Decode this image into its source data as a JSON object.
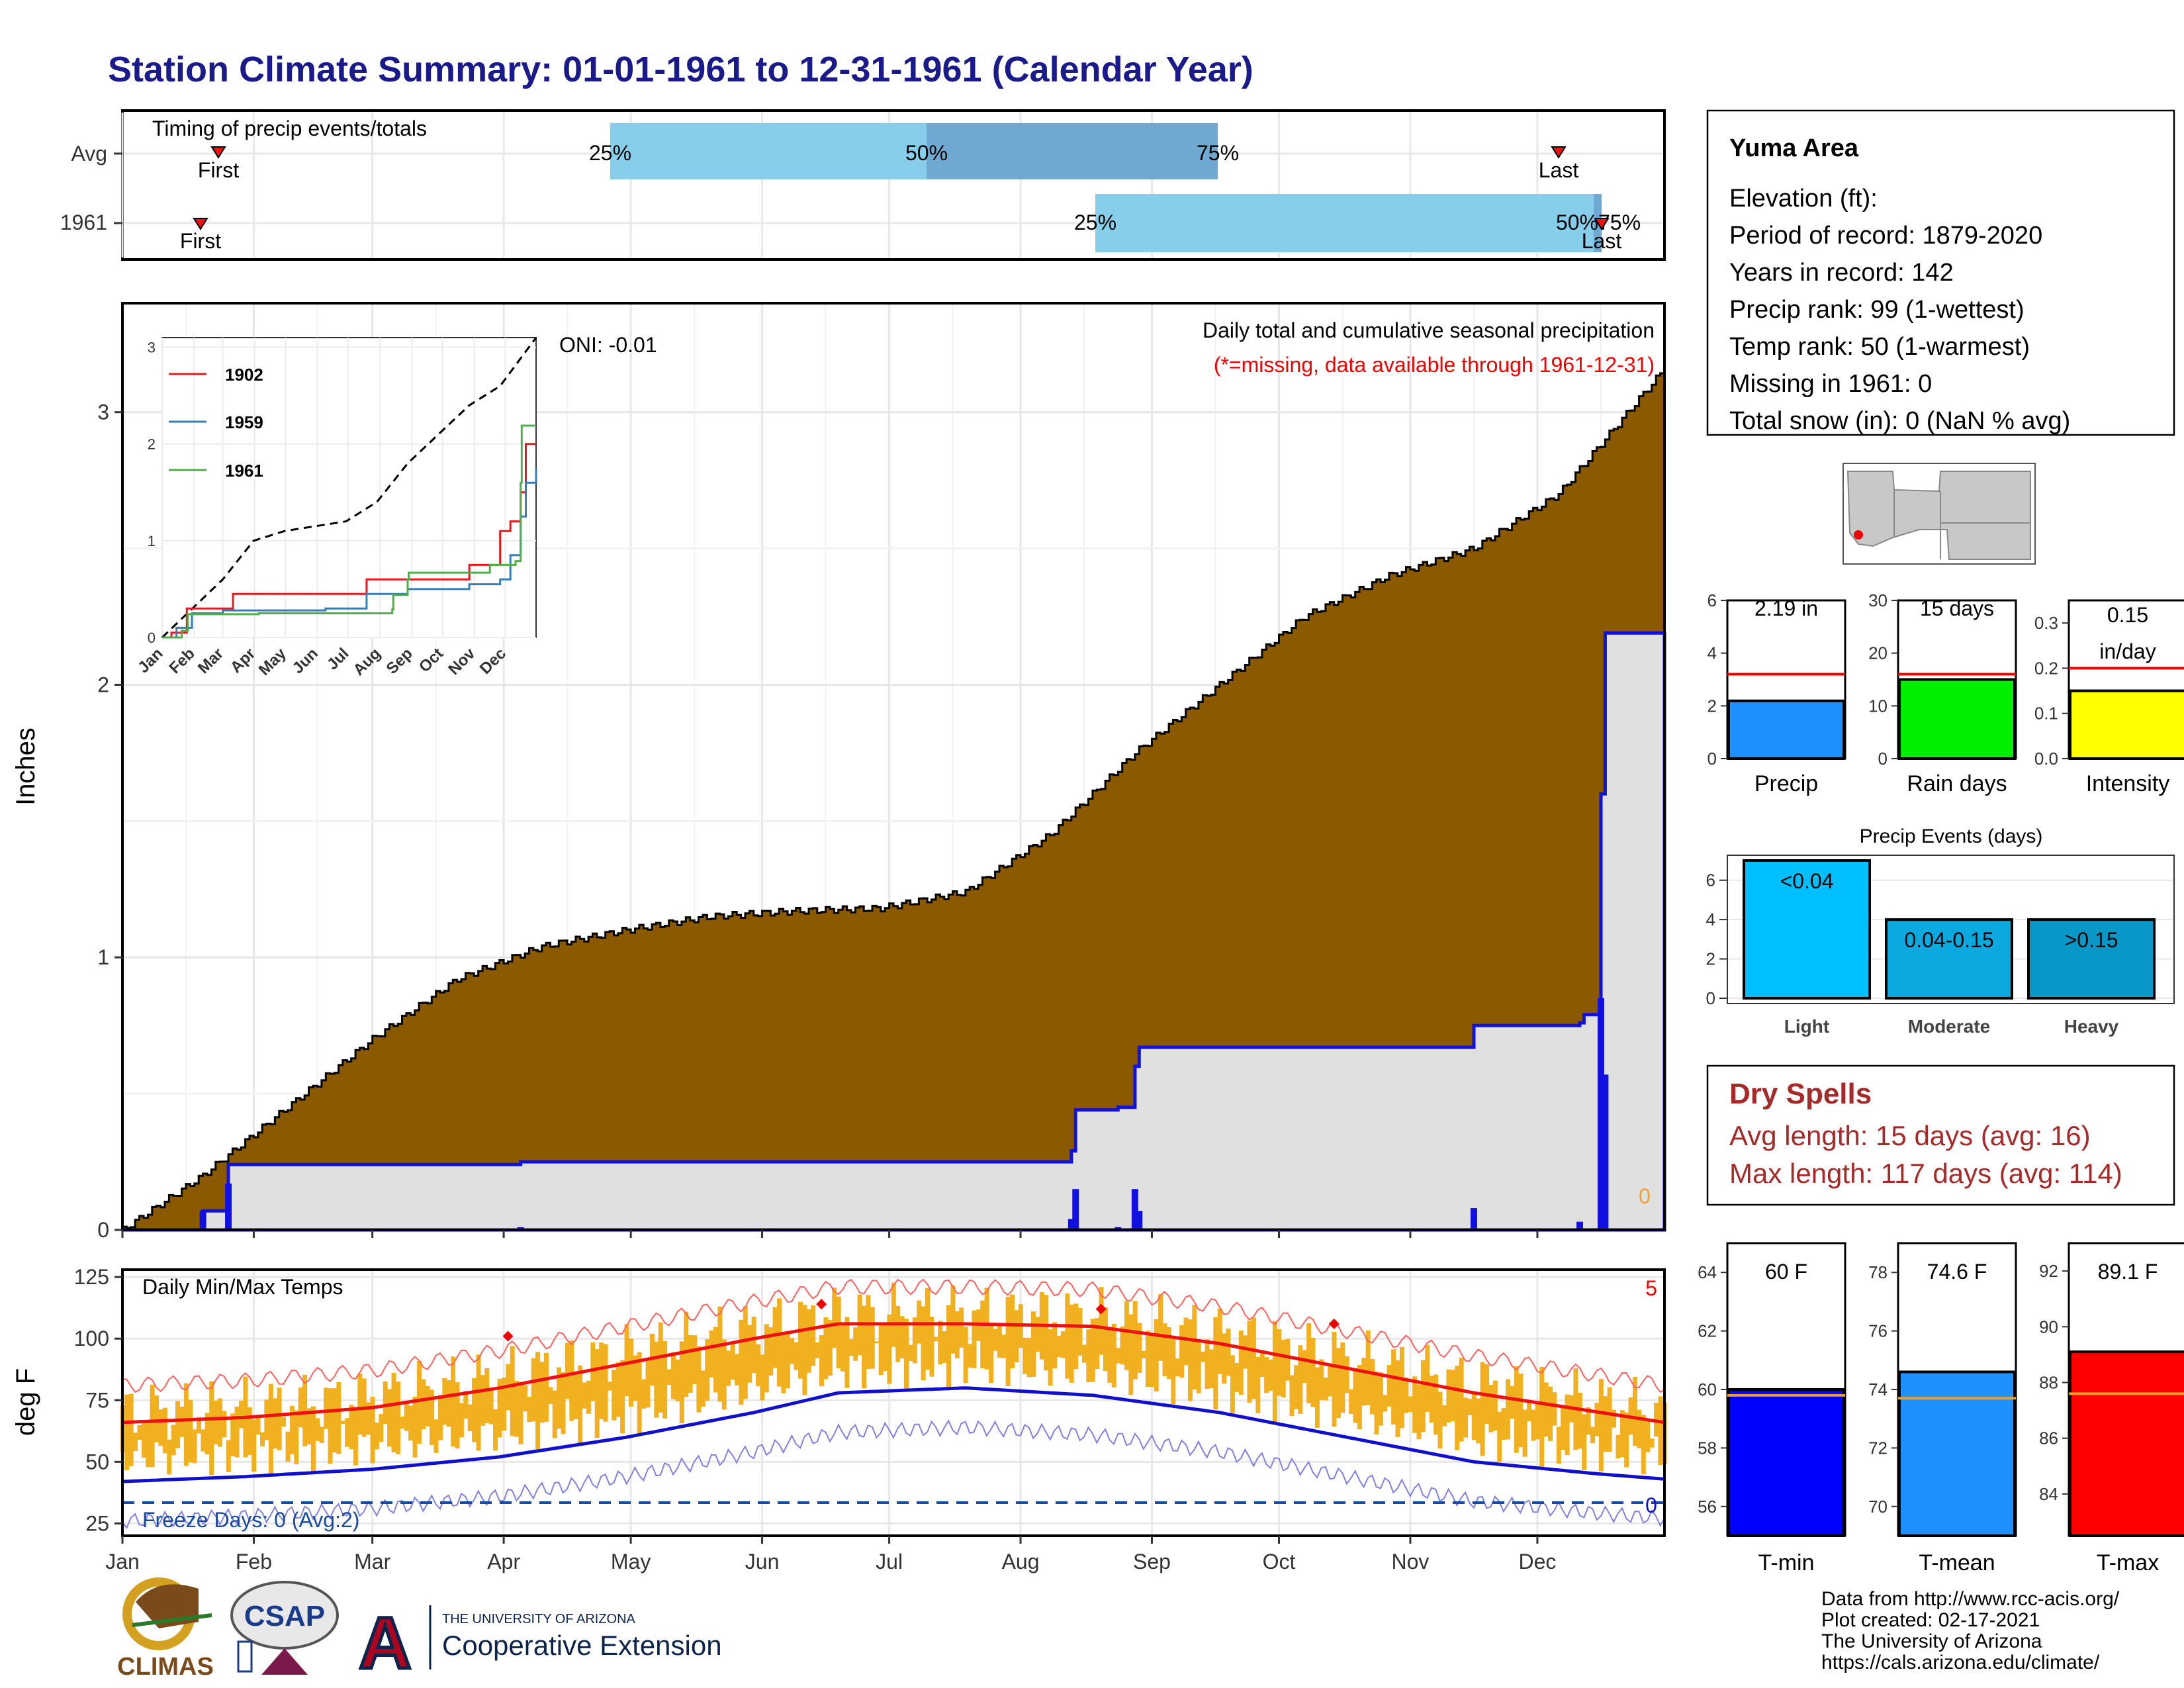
{
  "title": "Station Climate Summary: 01-01-1961 to 12-31-1961 (Calendar Year)",
  "colors": {
    "title": "#1a1a8a",
    "precip_fill": "#8b5a00",
    "obs_fill": "#e0e0e0",
    "obs_line": "#1010e0",
    "record_high": "#ff6060",
    "record_low": "#8080e0",
    "avg_high": "#ee1111",
    "avg_low": "#1010cc",
    "daily_bar": "#f0b020",
    "bar_light_blue": "#87ceeb",
    "bar_mid_blue": "#6fa8d0",
    "red_marker": "#ee1111"
  },
  "timing_panel": {
    "label": "Timing of precip events/totals",
    "row_avg": "Avg",
    "row_year": "1961",
    "first": "First",
    "last": "Last",
    "p25": "25%",
    "p50": "50%",
    "p75": "75%",
    "year_p50_75": "50%75%"
  },
  "info": {
    "station": "Yuma Area",
    "lines": [
      "Elevation (ft):",
      "Period of record: 1879-2020",
      "Years in record: 142",
      "Precip rank: 99 (1-wettest)",
      "Temp rank: 50 (1-warmest)",
      "Missing in 1961: 0",
      "Total snow (in): 0 (NaN % avg)"
    ]
  },
  "main_precip": {
    "legend_title": "Daily total and cumulative seasonal precipitation",
    "missing_note": "(*=missing, data available through 1961-12-31)",
    "oni": "ONI: -0.01",
    "y_label": "Inches",
    "y_ticks": [
      "0",
      "1",
      "2",
      "3"
    ],
    "zero_flag": "0"
  },
  "inset": {
    "y_ticks": [
      "0",
      "1",
      "2",
      "3"
    ],
    "x_ticks": [
      "Jan",
      "Feb",
      "Mar",
      "Apr",
      "May",
      "Jun",
      "Jul",
      "Aug",
      "Sep",
      "Oct",
      "Nov",
      "Dec"
    ],
    "legend": [
      {
        "name": "1902",
        "color": "#e41a1c"
      },
      {
        "name": "1959",
        "color": "#377eb8"
      },
      {
        "name": "1961",
        "color": "#4daf4a"
      }
    ]
  },
  "temp_panel": {
    "label": "Daily Min/Max Temps",
    "y_label": "deg F",
    "y_ticks": [
      "25",
      "50",
      "75",
      "100",
      "125"
    ],
    "freeze": "Freeze Days: 0 (Avg:2)",
    "record_count": "5",
    "freeze_count": "0"
  },
  "months": [
    "Jan",
    "Feb",
    "Mar",
    "Apr",
    "May",
    "Jun",
    "Jul",
    "Aug",
    "Sep",
    "Oct",
    "Nov",
    "Dec"
  ],
  "mini_bars": [
    {
      "name": "precip",
      "label": "Precip",
      "value_text": "2.19 in",
      "ticks": [
        "0",
        "2",
        "4",
        "6"
      ],
      "color": "#1e90ff"
    },
    {
      "name": "rain-days",
      "label": "Rain days",
      "value_text": "15 days",
      "ticks": [
        "0",
        "10",
        "20",
        "30"
      ],
      "color": "#00ee00"
    },
    {
      "name": "intensity",
      "label": "Intensity",
      "value_text": "0.15",
      "value_text2": "in/day",
      "ticks": [
        "0.0",
        "0.1",
        "0.2",
        "0.3"
      ],
      "color": "#ffff00"
    }
  ],
  "events": {
    "title": "Precip Events (days)",
    "ticks": [
      "0",
      "2",
      "4",
      "6"
    ],
    "bars": [
      {
        "name": "light",
        "label": "Light",
        "range": "<0.04",
        "color": "#00bfff"
      },
      {
        "name": "moderate",
        "label": "Moderate",
        "range": "0.04-0.15",
        "color": "#0ca8e0"
      },
      {
        "name": "heavy",
        "label": "Heavy",
        "range": ">0.15",
        "color": "#0898c8"
      }
    ]
  },
  "dry_spells": {
    "title": "Dry Spells",
    "avg": "Avg length: 15 days (avg: 16)",
    "max": "Max length: 117 days (avg: 114)",
    "color": "#a52a2a"
  },
  "temp_bars": [
    {
      "name": "tmin",
      "label": "T-min",
      "value_text": "60 F",
      "ticks": [
        "56",
        "58",
        "60",
        "62",
        "64"
      ],
      "color": "#0000ff"
    },
    {
      "name": "tmean",
      "label": "T-mean",
      "value_text": "74.6 F",
      "ticks": [
        "70",
        "72",
        "74",
        "76",
        "78"
      ],
      "color": "#1e90ff"
    },
    {
      "name": "tmax",
      "label": "T-max",
      "value_text": "89.1 F",
      "ticks": [
        "84",
        "86",
        "88",
        "90",
        "92"
      ],
      "color": "#ff0000"
    }
  ],
  "footer": {
    "lines": [
      "Data from http://www.rcc-acis.org/",
      "Plot created: 02-17-2021",
      "The University of Arizona",
      "https://cals.arizona.edu/climate/"
    ],
    "climas": "CLIMAS",
    "csap": "CSAP",
    "ua_small": "THE UNIVERSITY OF ARIZONA",
    "ua_big": "Cooperative Extension"
  },
  "chart_data": [
    {
      "type": "area",
      "title": "Daily total and cumulative seasonal precipitation",
      "ylabel": "Inches",
      "ylim": [
        0,
        3.4
      ],
      "x_unit": "day of year",
      "series": [
        {
          "name": "",
          "x": [
            1,
            20,
            40,
            60,
            80,
            100,
            120,
            140,
            160,
            180,
            200,
            220,
            240,
            260,
            280,
            300,
            320,
            340,
            365
          ],
          "values": [
            0,
            0.2,
            0.45,
            0.7,
            0.92,
            1.04,
            1.1,
            1.15,
            1.17,
            1.18,
            1.24,
            1.45,
            1.75,
            2.0,
            2.25,
            2.4,
            2.5,
            2.7,
            3.16
          ]
        },
        {
          "name": "",
          "x": [
            1,
            20,
            26,
            95,
            225,
            226,
            235,
            236,
            240,
            241,
            320,
            321,
            345,
            346,
            350,
            351,
            365
          ],
          "values": [
            0,
            0.07,
            0.24,
            0.25,
            0.29,
            0.44,
            0.44,
            0.45,
            0.6,
            0.67,
            0.75,
            0.75,
            0.76,
            0.79,
            1.6,
            2.19,
            2.19
          ]
        }
      ]
    },
    {
      "type": "line",
      "title": "",
      "ylim": [
        0,
        3.1
      ],
      "series": [
        {
          "name": "",
          "x": [
            1,
            60,
            90,
            120,
            180,
            210,
            240,
            270,
            300,
            330,
            365
          ],
          "values": [
            0,
            0.6,
            1.0,
            1.1,
            1.2,
            1.4,
            1.8,
            2.1,
            2.4,
            2.6,
            3.1
          ]
        },
        {
          "name": "1902",
          "x": [
            1,
            10,
            25,
            60,
            70,
            160,
            200,
            240,
            300,
            330,
            340,
            350,
            355,
            365
          ],
          "values": [
            0,
            0.05,
            0.3,
            0.3,
            0.45,
            0.45,
            0.6,
            0.6,
            0.75,
            1.1,
            1.2,
            1.5,
            2.0,
            2.0
          ]
        },
        {
          "name": "1959",
          "x": [
            1,
            15,
            30,
            60,
            160,
            200,
            240,
            300,
            330,
            340,
            350,
            355,
            365
          ],
          "values": [
            0,
            0.1,
            0.25,
            0.28,
            0.3,
            0.45,
            0.5,
            0.55,
            0.6,
            0.85,
            1.25,
            1.6,
            1.75
          ]
        },
        {
          "name": "1961",
          "x": [
            1,
            20,
            26,
            95,
            225,
            226,
            240,
            241,
            320,
            345,
            350,
            351,
            365
          ],
          "values": [
            0,
            0.07,
            0.24,
            0.25,
            0.29,
            0.44,
            0.6,
            0.67,
            0.75,
            0.79,
            1.6,
            2.19,
            2.19
          ]
        }
      ]
    },
    {
      "type": "bar",
      "title": "Daily Min/Max Temps",
      "ylabel": "deg F",
      "ylim": [
        20,
        128
      ],
      "series": [
        {
          "name": "",
          "x": [
            1,
            30,
            60,
            90,
            120,
            150,
            170,
            200,
            230,
            260,
            290,
            320,
            350,
            365
          ],
          "values": [
            66,
            68,
            72,
            80,
            90,
            100,
            106,
            106,
            105,
            98,
            88,
            78,
            70,
            66
          ]
        },
        {
          "name": "",
          "x": [
            1,
            30,
            60,
            90,
            120,
            150,
            170,
            200,
            230,
            260,
            290,
            320,
            350,
            365
          ],
          "values": [
            42,
            44,
            47,
            52,
            60,
            70,
            78,
            80,
            77,
            70,
            60,
            50,
            45,
            43
          ]
        }
      ]
    },
    {
      "type": "bar",
      "title": "",
      "categories": [
        "Precip",
        "Rain days",
        "Intensity"
      ],
      "series": [
        {
          "name": "",
          "values": [
            2.19,
            15,
            0.15
          ]
        },
        {
          "name": "",
          "values": [
            3.2,
            16,
            0.2
          ]
        }
      ]
    },
    {
      "type": "bar",
      "title": "Precip Events (days)",
      "categories": [
        "Light",
        "Moderate",
        "Heavy"
      ],
      "values": [
        7,
        4,
        4
      ],
      "ylim": [
        0,
        7
      ]
    },
    {
      "type": "bar",
      "title": "",
      "categories": [
        "T-min",
        "T-mean",
        "T-max"
      ],
      "series": [
        {
          "name": "",
          "values": [
            60,
            74.6,
            89.1
          ]
        },
        {
          "name": "",
          "values": [
            59.8,
            73.7,
            87.6
          ]
        }
      ]
    }
  ]
}
